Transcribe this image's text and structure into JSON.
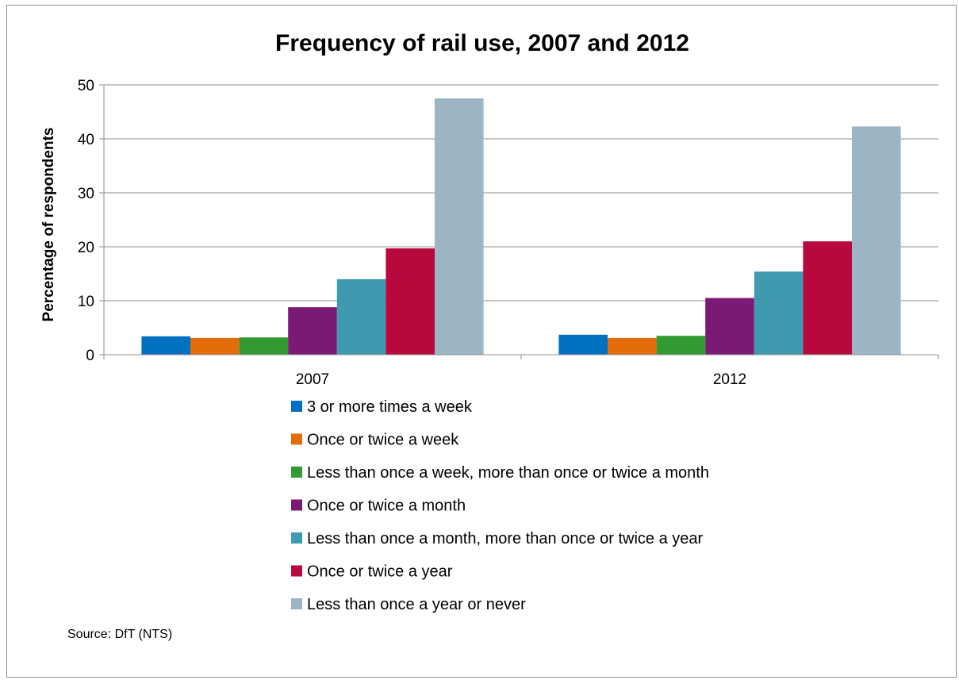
{
  "chart_data": {
    "type": "bar",
    "title": "Frequency of rail use, 2007 and 2012",
    "xlabel": "",
    "ylabel": "Percentage of respondents",
    "ylim": [
      0,
      50
    ],
    "yticks": [
      0,
      10,
      20,
      30,
      40,
      50
    ],
    "grid": true,
    "legend_position": "bottom",
    "categories": [
      "2007",
      "2012"
    ],
    "series": [
      {
        "name": "3 or more times a week",
        "color": "#0070C0",
        "values": [
          3.4,
          3.7
        ]
      },
      {
        "name": "Once or twice a week",
        "color": "#E46C0A",
        "values": [
          3.1,
          3.1
        ]
      },
      {
        "name": "Less than once a week, more than once or twice a month",
        "color": "#339933",
        "values": [
          3.2,
          3.5
        ]
      },
      {
        "name": "Once or twice a month",
        "color": "#7A1A74",
        "values": [
          8.8,
          10.5
        ]
      },
      {
        "name": "Less than once a month, more than once or twice a year",
        "color": "#3F9AB0",
        "values": [
          14.0,
          15.4
        ]
      },
      {
        "name": "Once or twice a year",
        "color": "#B7093C",
        "values": [
          19.7,
          21.0
        ]
      },
      {
        "name": "Less than once a year or never",
        "color": "#9BB5C4",
        "values": [
          47.5,
          42.3
        ]
      }
    ],
    "source": "Source: DfT (NTS)"
  }
}
